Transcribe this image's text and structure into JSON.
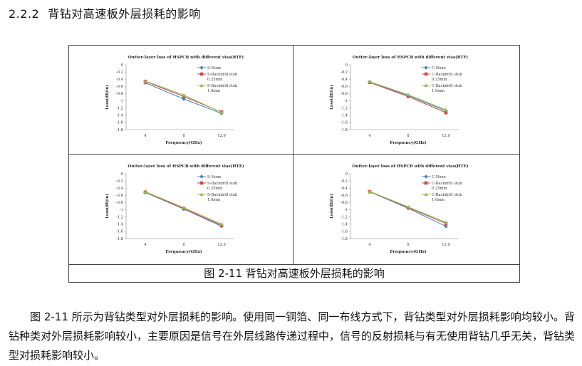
{
  "heading": {
    "number": "2.2.2",
    "text": "背钻对高速板外层损耗的影响"
  },
  "figure_caption": "图 2-11 背钻对高速板外层损耗的影响",
  "paragraph": "图 2-11 所示为背钻类型对外层损耗的影响。使用同一铜箔、同一布线方式下，背钻类型对外层损耗影响均较小。背钻种类对外层损耗影响较小，主要原因是信号在外层线路传递过程中，信号的反射损耗与有无使用背钻几乎无关，背钻类型对损耗影响较小。",
  "colors": {
    "blue": "#4f81bd",
    "red": "#c0504d",
    "green": "#9bbb59"
  },
  "chart_data": [
    {
      "type": "line",
      "title": "Outter-layer loss of HSPCB with different vias(RTF)",
      "xlabel": "Frequency(GHz)",
      "ylabel": "Loss(dB/in)",
      "categories": [
        "4",
        "8",
        "12.9"
      ],
      "ylim": [
        -1.8,
        0
      ],
      "yticks": [
        "0",
        "-0.2",
        "-0.4",
        "-0.6",
        "-0.8",
        "-1",
        "-1.2",
        "-1.4",
        "-1.6",
        "-1.8"
      ],
      "series": [
        {
          "name": "S-None",
          "legend_lines": [
            "S-None"
          ],
          "color": "blue",
          "marker": "diamond",
          "values": [
            -0.5,
            -0.95,
            -1.35
          ]
        },
        {
          "name": "S-Backdrill stub 0.25mm",
          "legend_lines": [
            "S-Backdrill stub",
            "0.25mm"
          ],
          "color": "red",
          "marker": "square",
          "values": [
            -0.46,
            -0.88,
            -1.31
          ]
        },
        {
          "name": "S-Backdrill stub 1.0mm",
          "legend_lines": [
            "S-Backdrill stub",
            "1.0mm"
          ],
          "color": "green",
          "marker": "triangle",
          "values": [
            -0.45,
            -0.84,
            -1.32
          ]
        }
      ]
    },
    {
      "type": "line",
      "title": "Outter-layer loss of HSPCB with different vias(RTF)",
      "xlabel": "Frequency(GHz)",
      "ylabel": "Loss(dB/in)",
      "categories": [
        "4",
        "8",
        "12.9"
      ],
      "ylim": [
        -1.8,
        0
      ],
      "yticks": [
        "0",
        "-0.2",
        "-0.4",
        "-0.6",
        "-0.8",
        "-1",
        "-1.2",
        "-1.4",
        "-1.6",
        "-1.8"
      ],
      "series": [
        {
          "name": "C-None",
          "legend_lines": [
            "C-None"
          ],
          "color": "blue",
          "marker": "diamond",
          "values": [
            -0.48,
            -0.85,
            -1.28
          ]
        },
        {
          "name": "C-Backdrill stub 0.25mm",
          "legend_lines": [
            "C-Backdrill stub",
            "0.25mm"
          ],
          "color": "red",
          "marker": "square",
          "values": [
            -0.49,
            -0.88,
            -1.33
          ]
        },
        {
          "name": "C-Backdrill stub 1.0mm",
          "legend_lines": [
            "C-Backdrill stub",
            "1.0mm"
          ],
          "color": "green",
          "marker": "triangle",
          "values": [
            -0.47,
            -0.83,
            -1.25
          ]
        }
      ]
    },
    {
      "type": "line",
      "title": "Outter-layer loss of HSPCB with different vias(HTE)",
      "xlabel": "Frequency(GHz)",
      "ylabel": "Loss(dB/in)",
      "categories": [
        "4",
        "8",
        "12.9"
      ],
      "ylim": [
        -1.8,
        0
      ],
      "yticks": [
        "0",
        "-0.2",
        "-0.4",
        "-0.6",
        "-0.8",
        "-1",
        "-1.2",
        "-1.4",
        "-1.6",
        "-1.8"
      ],
      "series": [
        {
          "name": "S-None",
          "legend_lines": [
            "S-None"
          ],
          "color": "blue",
          "marker": "diamond",
          "values": [
            -0.52,
            -0.98,
            -1.46
          ]
        },
        {
          "name": "S-Backdrill stub 0.25mm",
          "legend_lines": [
            "S-Backdrill stub",
            "0.25mm"
          ],
          "color": "red",
          "marker": "square",
          "values": [
            -0.51,
            -0.97,
            -1.43
          ]
        },
        {
          "name": "S-Backdrill stub 1.0mm",
          "legend_lines": [
            "S-Backdrill stub",
            "1.0mm"
          ],
          "color": "green",
          "marker": "triangle",
          "values": [
            -0.5,
            -0.94,
            -1.4
          ]
        }
      ]
    },
    {
      "type": "line",
      "title": "Outter-layer loss of HSPCB with different vias(HTE)",
      "xlabel": "Frequency(GHz)",
      "ylabel": "Loss(dB/in)",
      "categories": [
        "4",
        "8",
        "12.9"
      ],
      "ylim": [
        -1.8,
        0
      ],
      "yticks": [
        "0",
        "-0.2",
        "-0.4",
        "-0.6",
        "-0.8",
        "-1",
        "-1.2",
        "-1.4",
        "-1.6",
        "-1.8"
      ],
      "series": [
        {
          "name": "C-None",
          "legend_lines": [
            "C-None"
          ],
          "color": "blue",
          "marker": "diamond",
          "values": [
            -0.5,
            -0.96,
            -1.46
          ]
        },
        {
          "name": "C-Backdrill stub 0.25mm",
          "legend_lines": [
            "C-Backdrill stub",
            "0.25mm"
          ],
          "color": "red",
          "marker": "square",
          "values": [
            -0.5,
            -0.94,
            -1.38
          ]
        },
        {
          "name": "C-Backdrill stub 1.0mm",
          "legend_lines": [
            "C-Backdrill stub",
            "1.0mm"
          ],
          "color": "green",
          "marker": "triangle",
          "values": [
            -0.49,
            -0.92,
            -1.35
          ]
        }
      ]
    }
  ]
}
